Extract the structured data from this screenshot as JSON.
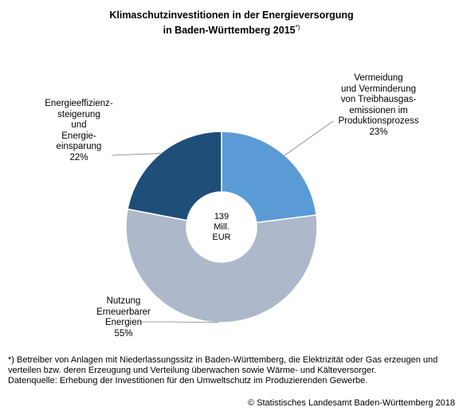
{
  "chart_data": {
    "type": "pie",
    "title_line1": "Klimaschutzinvestitionen in der Energieversorgung",
    "title_line2": "in Baden-Württemberg 2015",
    "title_sup": "*)",
    "center_label": [
      "139",
      "Mill.",
      "EUR"
    ],
    "slices": [
      {
        "label_lines": [
          "Vermeidung",
          "und Verminderung",
          "von Treibhausgas-",
          "emissionen im",
          "Produktionsprozess"
        ],
        "percent_text": "23%",
        "value": 23,
        "color": "#5b9bd5"
      },
      {
        "label_lines": [
          "Nutzung",
          "Erneuerbarer",
          "Energien"
        ],
        "percent_text": "55%",
        "value": 55,
        "color": "#adb9ca"
      },
      {
        "label_lines": [
          "Energieeffizienz-",
          "steigerung",
          "und",
          "Energie-",
          "einsparung"
        ],
        "percent_text": "22%",
        "value": 22,
        "color": "#1f4e79"
      }
    ]
  },
  "footnote": {
    "line1": "*) Betreiber von Anlagen mit Niederlassungssitz in Baden-Württemberg, die Elektrizität oder Gas erzeugen und verteilen bzw. deren Erzeugung und Verteilung überwachen sowie Wärme- und Kälteversorger.",
    "line2": "Datenquelle: Erhebung der Investitionen für den Umweltschutz im Produzierenden Gewerbe."
  },
  "source": "© Statistisches Landesamt Baden-Württemberg 2018"
}
